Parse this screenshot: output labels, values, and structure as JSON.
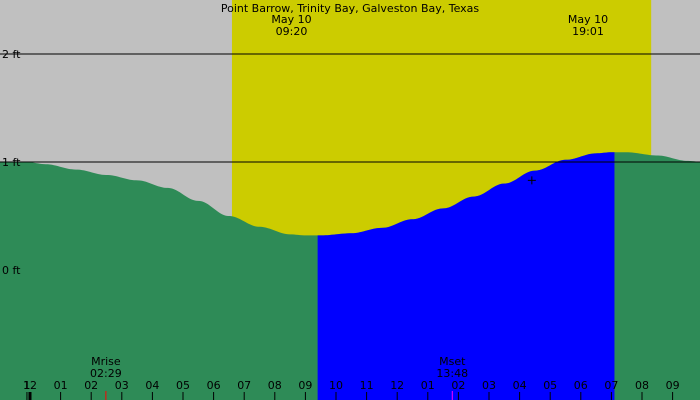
{
  "chart_data": {
    "type": "area",
    "title": "Point Barrow, Trinity Bay, Galveston Bay, Texas",
    "xlabel": "",
    "ylabel": "",
    "x_unit": "hour",
    "x_range": [
      -0.1,
      22.7
    ],
    "ylim": [
      -1.0,
      2.5
    ],
    "y_ticks": [
      {
        "value": 2,
        "label": "2 ft"
      },
      {
        "value": 1,
        "label": "1 ft"
      },
      {
        "value": 0,
        "label": "0 ft"
      }
    ],
    "x_ticks": [
      {
        "hour": -0.1,
        "label": "1"
      },
      {
        "hour": 0,
        "label": "12"
      },
      {
        "hour": 1,
        "label": "01"
      },
      {
        "hour": 2,
        "label": "02"
      },
      {
        "hour": 3,
        "label": "03"
      },
      {
        "hour": 4,
        "label": "04"
      },
      {
        "hour": 5,
        "label": "05"
      },
      {
        "hour": 6,
        "label": "06"
      },
      {
        "hour": 7,
        "label": "07"
      },
      {
        "hour": 8,
        "label": "08"
      },
      {
        "hour": 9,
        "label": "09"
      },
      {
        "hour": 10,
        "label": "10"
      },
      {
        "hour": 11,
        "label": "11"
      },
      {
        "hour": 12,
        "label": "12"
      },
      {
        "hour": 13,
        "label": "01"
      },
      {
        "hour": 14,
        "label": "02"
      },
      {
        "hour": 15,
        "label": "03"
      },
      {
        "hour": 16,
        "label": "04"
      },
      {
        "hour": 17,
        "label": "05"
      },
      {
        "hour": 18,
        "label": "06"
      },
      {
        "hour": 19,
        "label": "07"
      },
      {
        "hour": 20,
        "label": "08"
      },
      {
        "hour": 21,
        "label": "09"
      }
    ],
    "daylight": {
      "start_hour": 6.6,
      "end_hour": 20.3
    },
    "sun_labels": [
      {
        "hour": 9.33,
        "date": "May 10",
        "time": "09:20"
      },
      {
        "hour": 19.02,
        "date": "May 10",
        "time": "19:01"
      }
    ],
    "moon_events": [
      {
        "hour": 2.48,
        "name": "Mrise",
        "time": "02:29"
      },
      {
        "hour": 13.8,
        "name": "Mset",
        "time": "13:48"
      }
    ],
    "highlight_range": [
      9.4,
      19.1
    ],
    "marker": {
      "hour": 16.4,
      "height": 0.83
    },
    "series": [
      {
        "x": [
          -0.1,
          0.5,
          1.5,
          2.5,
          3.5,
          4.5,
          5.5,
          6.5,
          7.5,
          8.5,
          9.0,
          9.5,
          10.5,
          11.5,
          12.5,
          13.5,
          14.5,
          15.5,
          16.5,
          17.5,
          18.5,
          19.0,
          19.5,
          20.5,
          21.5,
          22.7
        ],
        "values": [
          1.0,
          0.98,
          0.93,
          0.88,
          0.83,
          0.76,
          0.64,
          0.5,
          0.4,
          0.33,
          0.32,
          0.32,
          0.34,
          0.39,
          0.47,
          0.57,
          0.68,
          0.8,
          0.92,
          1.02,
          1.08,
          1.09,
          1.09,
          1.06,
          1.01,
          0.96
        ]
      }
    ],
    "colors": {
      "night": "#c0c0c0",
      "day": "#cccc00",
      "tide": "#2e8b57",
      "tide_highlight": "#0000ff",
      "moon_tick": "#ff0000",
      "moon_tick_alt": "#ff00ff"
    }
  }
}
